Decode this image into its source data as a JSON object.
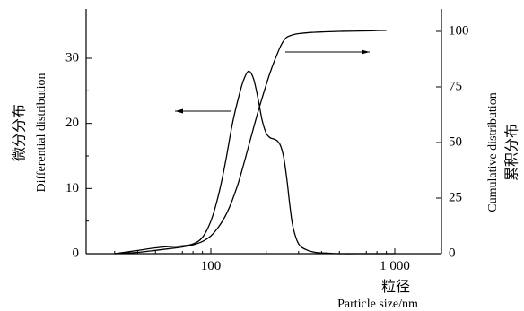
{
  "chart_data": {
    "type": "line",
    "xlabel_cn": "粒径",
    "xlabel": "Particle size/nm",
    "ylabel_left_cn": "微分分布",
    "ylabel_left": "Differential distribution",
    "ylabel_right": "Cumulative distribution",
    "ylabel_right_cn": "累积分布",
    "x_scale": "log",
    "xlim": [
      20,
      2000
    ],
    "x_ticks": [
      100,
      1000
    ],
    "x_tick_labels": [
      "100",
      "1 000"
    ],
    "ylim_left": [
      0,
      37
    ],
    "y_ticks_left": [
      0,
      10,
      20,
      30
    ],
    "y_tick_labels_left": [
      "0",
      "10",
      "20",
      "30"
    ],
    "ylim_right": [
      0,
      110
    ],
    "y_ticks_right": [
      0,
      25,
      50,
      75,
      100
    ],
    "y_tick_labels_right": [
      "0",
      "25",
      "50",
      "75",
      "100"
    ],
    "grid": false,
    "series": [
      {
        "axis": "left",
        "x": [
          30,
          40,
          50,
          60,
          70,
          80,
          90,
          100,
          110,
          120,
          130,
          140,
          150,
          160,
          170,
          180,
          190,
          200,
          210,
          220,
          230,
          240,
          250,
          260,
          270,
          280,
          300,
          330,
          370,
          420,
          500,
          700,
          1000
        ],
        "y": [
          0,
          0.5,
          0.9,
          1.1,
          1.2,
          1.5,
          2.5,
          5.0,
          9.0,
          14.0,
          19.5,
          23.5,
          26.5,
          28.0,
          27.0,
          24.0,
          20.5,
          18.5,
          17.8,
          17.6,
          17.3,
          16.5,
          14.5,
          11.0,
          7.0,
          4.0,
          1.5,
          0.6,
          0.2,
          0.1,
          0,
          0,
          0
        ]
      },
      {
        "axis": "right",
        "x": [
          30,
          40,
          50,
          60,
          70,
          80,
          90,
          100,
          110,
          120,
          130,
          140,
          150,
          160,
          170,
          180,
          190,
          200,
          210,
          220,
          230,
          240,
          250,
          260,
          280,
          300,
          350,
          400,
          500,
          700,
          900
        ],
        "y": [
          0,
          0.6,
          1.5,
          2.3,
          3.0,
          4.0,
          5.5,
          8.0,
          12.0,
          17.0,
          23.5,
          31.0,
          39.5,
          48.0,
          56.0,
          63.5,
          70.0,
          76.0,
          81.5,
          86.0,
          90.0,
          93.5,
          96.0,
          97.5,
          98.5,
          99.0,
          99.5,
          99.7,
          100.0,
          100.2,
          100.5
        ]
      }
    ],
    "annotations": [
      {
        "type": "arrow",
        "direction": "left",
        "target_axis": "left"
      },
      {
        "type": "arrow",
        "direction": "right",
        "target_axis": "right"
      }
    ]
  }
}
